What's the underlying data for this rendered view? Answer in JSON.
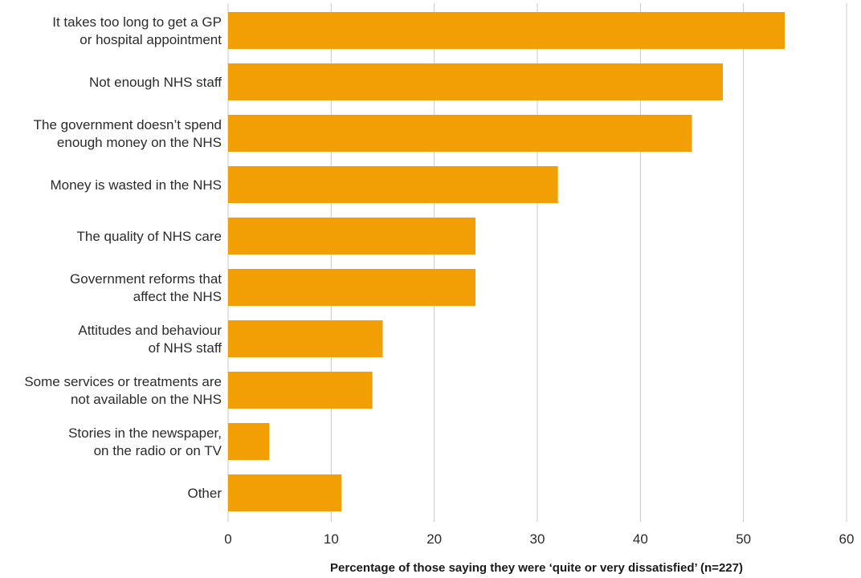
{
  "chart_data": {
    "type": "bar",
    "orientation": "horizontal",
    "categories": [
      [
        "It takes too long to get a GP",
        "or hospital appointment"
      ],
      [
        "Not enough NHS staff"
      ],
      [
        "The government doesn’t spend",
        "enough money on the NHS"
      ],
      [
        "Money is wasted in the NHS"
      ],
      [
        "The quality of NHS care"
      ],
      [
        "Government reforms that",
        "affect the NHS"
      ],
      [
        "Attitudes and behaviour",
        "of NHS staff"
      ],
      [
        "Some services or treatments are",
        "not available on the NHS"
      ],
      [
        "Stories in the newspaper,",
        "on the radio or on TV"
      ],
      [
        "Other"
      ]
    ],
    "values": [
      54,
      48,
      45,
      32,
      24,
      24,
      15,
      14,
      4,
      11
    ],
    "xlim": [
      0,
      60
    ],
    "xticks": [
      "0",
      "10",
      "20",
      "30",
      "40",
      "50",
      "60"
    ],
    "xlabel": "Percentage of those saying they were ‘quite or very dissatisfied’ (n=227)",
    "grid": "vertical",
    "bar_color": "#f29f05"
  }
}
